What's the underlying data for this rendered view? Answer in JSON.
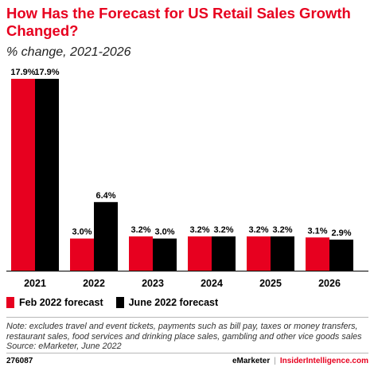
{
  "title": "How Has the Forecast for US Retail Sales Growth Changed?",
  "subtitle": "% change, 2021-2026",
  "colors": {
    "series_feb": "#e7001f",
    "series_june": "#000000",
    "title": "#e7001f"
  },
  "chart_data": {
    "type": "bar",
    "categories": [
      "2021",
      "2022",
      "2023",
      "2024",
      "2025",
      "2026"
    ],
    "series": [
      {
        "name": "Feb 2022 forecast",
        "values": [
          17.9,
          3.0,
          3.2,
          3.2,
          3.2,
          3.1
        ],
        "labels": [
          "17.9%",
          "3.0%",
          "3.2%",
          "3.2%",
          "3.2%",
          "3.1%"
        ]
      },
      {
        "name": "June 2022 forecast",
        "values": [
          17.9,
          6.4,
          3.0,
          3.2,
          3.2,
          2.9
        ],
        "labels": [
          "17.9%",
          "6.4%",
          "3.0%",
          "3.2%",
          "3.2%",
          "2.9%"
        ]
      }
    ],
    "ylim": [
      0,
      17.9
    ],
    "grid": false,
    "legend": "bottom-left"
  },
  "legend": {
    "feb_label": "Feb 2022 forecast",
    "june_label": "June 2022 forecast"
  },
  "note": "Note: excludes travel and event tickets, payments such as bill pay, taxes or money transfers, restaurant sales, food services and drinking place sales, gambling and other vice goods sales",
  "source": "Source: eMarketer, June 2022",
  "footer": {
    "id": "276087",
    "brand_left": "eMarketer",
    "separator": "|",
    "brand_right": "InsiderIntelligence.com"
  }
}
